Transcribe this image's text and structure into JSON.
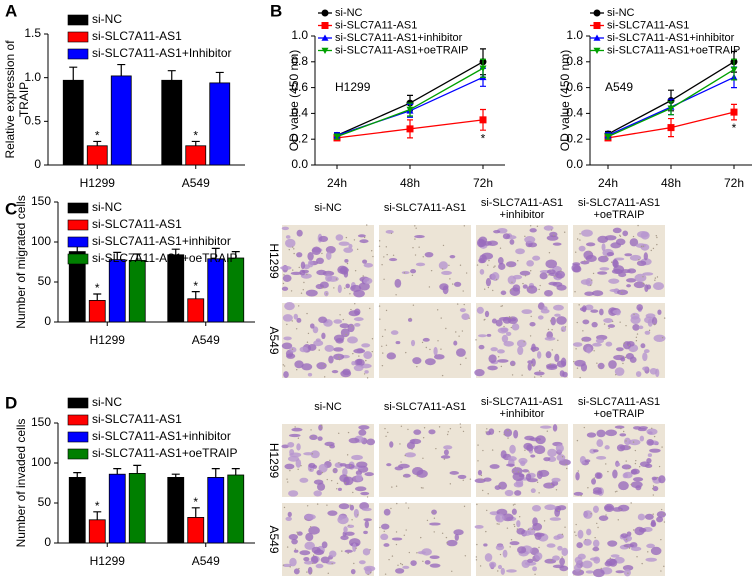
{
  "panel_labels": [
    "A",
    "B",
    "C",
    "D"
  ],
  "chart_data": [
    {
      "type": "bar",
      "ylabel": [
        "Relative expression of",
        "TRAIP"
      ],
      "categories": [
        "H1299",
        "A549"
      ],
      "ylim": [
        0,
        1.5
      ],
      "yticks": [
        0,
        0.5,
        {
          "value": 1,
          "label": "1.0"
        },
        1.5
      ],
      "legend": "top-left",
      "series": [
        {
          "name": "si-NC",
          "color": "#000000",
          "values": [
            0.97,
            0.97
          ],
          "errors": [
            0.15,
            0.11
          ]
        },
        {
          "name": "si-SLC7A11-AS1",
          "color": "#ff0000",
          "values": [
            0.22,
            0.22
          ],
          "errors": [
            0.05,
            0.05
          ],
          "significance_mark": "*"
        },
        {
          "name": "si-SLC7A11-AS1+Inhibitor",
          "color": "#0000ff",
          "values": [
            1.02,
            0.94
          ],
          "errors": [
            0.13,
            0.12
          ]
        }
      ]
    },
    {
      "type": "line",
      "ylabel": [
        "OD value (450 nm)"
      ],
      "annotation": "H1299",
      "categories": [
        "24h",
        "48h",
        "72h"
      ],
      "ylim": [
        0,
        1
      ],
      "yticks": [
        {
          "value": 0,
          "label": "0.0"
        },
        0.2,
        0.4,
        0.6,
        0.8,
        {
          "value": 1,
          "label": "1.0"
        }
      ],
      "legend": "top-left",
      "series": [
        {
          "name": "si-NC",
          "color": "#000000",
          "marker": "circle",
          "values": [
            0.23,
            0.48,
            0.8
          ],
          "errors": [
            0.02,
            0.06,
            0.1
          ]
        },
        {
          "name": "si-SLC7A11-AS1",
          "color": "#ff0000",
          "marker": "square",
          "values": [
            0.21,
            0.28,
            0.35
          ],
          "errors": [
            0.02,
            0.07,
            0.08
          ],
          "significance_mark": "*"
        },
        {
          "name": "si-SLC7A11-AS1+inhibitor",
          "color": "#0000ff",
          "marker": "triangle",
          "values": [
            0.23,
            0.42,
            0.68
          ],
          "errors": [
            0.02,
            0.05,
            0.07
          ]
        },
        {
          "name": "si-SLC7A11-AS1+oeTRAIP",
          "color": "#00a000",
          "marker": "triangle-down",
          "values": [
            0.22,
            0.43,
            0.75
          ],
          "errors": [
            0.02,
            0.05,
            0.07
          ]
        }
      ]
    },
    {
      "type": "line",
      "ylabel": [
        "OD value (450 nm)"
      ],
      "annotation": "A549",
      "categories": [
        "24h",
        "48h",
        "72h"
      ],
      "ylim": [
        0,
        1
      ],
      "yticks": [
        {
          "value": 0,
          "label": "0.0"
        },
        0.2,
        0.4,
        0.6,
        0.8,
        {
          "value": 1,
          "label": "1.0"
        }
      ],
      "legend": "top-left",
      "series": [
        {
          "name": "si-NC",
          "color": "#000000",
          "marker": "circle",
          "values": [
            0.24,
            0.5,
            0.8
          ],
          "errors": [
            0.02,
            0.08,
            0.08
          ]
        },
        {
          "name": "si-SLC7A11-AS1",
          "color": "#ff0000",
          "marker": "square",
          "values": [
            0.21,
            0.29,
            0.41
          ],
          "errors": [
            0.02,
            0.07,
            0.06
          ],
          "significance_mark": "*"
        },
        {
          "name": "si-SLC7A11-AS1+inhibitor",
          "color": "#0000ff",
          "marker": "triangle",
          "values": [
            0.23,
            0.45,
            0.68
          ],
          "errors": [
            0.02,
            0.06,
            0.08
          ]
        },
        {
          "name": "si-SLC7A11-AS1+oeTRAIP",
          "color": "#00a000",
          "marker": "triangle-down",
          "values": [
            0.22,
            0.44,
            0.74
          ],
          "errors": [
            0.02,
            0.05,
            0.08
          ]
        }
      ]
    },
    {
      "type": "bar",
      "ylabel": [
        "Number of migrated cells"
      ],
      "categories": [
        "H1299",
        "A549"
      ],
      "ylim": [
        0,
        150
      ],
      "yticks": [
        0,
        50,
        100,
        150
      ],
      "legend": "top-left",
      "series": [
        {
          "name": "si-NC",
          "color": "#000000",
          "values": [
            88,
            84
          ],
          "errors": [
            17,
            7
          ]
        },
        {
          "name": "si-SLC7A11-AS1",
          "color": "#ff0000",
          "values": [
            27,
            29
          ],
          "errors": [
            8,
            9
          ],
          "significance_mark": "*"
        },
        {
          "name": "si-SLC7A11-AS1+inhibitor",
          "color": "#0000ff",
          "values": [
            78,
            79
          ],
          "errors": [
            9,
            13
          ]
        },
        {
          "name": "si-SLC7A11-AS1+oeTRAIP",
          "color": "#007f00",
          "values": [
            77,
            80
          ],
          "errors": [
            8,
            8
          ]
        }
      ]
    },
    {
      "type": "bar",
      "ylabel": [
        "Number of invaded cells"
      ],
      "categories": [
        "H1299",
        "A549"
      ],
      "ylim": [
        0,
        150
      ],
      "yticks": [
        0,
        50,
        100,
        150
      ],
      "legend": "top-left",
      "series": [
        {
          "name": "si-NC",
          "color": "#000000",
          "values": [
            82,
            82
          ],
          "errors": [
            6,
            4
          ]
        },
        {
          "name": "si-SLC7A11-AS1",
          "color": "#ff0000",
          "values": [
            29,
            32
          ],
          "errors": [
            10,
            12
          ],
          "significance_mark": "*"
        },
        {
          "name": "si-SLC7A11-AS1+inhibitor",
          "color": "#0000ff",
          "values": [
            86,
            82
          ],
          "errors": [
            7,
            11
          ]
        },
        {
          "name": "si-SLC7A11-AS1+oeTRAIP",
          "color": "#007f00",
          "values": [
            87,
            85
          ],
          "errors": [
            10,
            8
          ]
        }
      ]
    }
  ],
  "micrographs": [
    {
      "columns": [
        [
          "si-NC"
        ],
        [
          "si-SLC7A11-AS1"
        ],
        [
          "si-SLC7A11-AS1",
          "+inhibitor"
        ],
        [
          "si-SLC7A11-AS1",
          "+oeTRAIP"
        ]
      ],
      "rows": [
        "H1299",
        "A549"
      ]
    },
    {
      "columns": [
        [
          "si-NC"
        ],
        [
          "si-SLC7A11-AS1"
        ],
        [
          "si-SLC7A11-AS1",
          "+inhibitor"
        ],
        [
          "si-SLC7A11-AS1",
          "+oeTRAIP"
        ]
      ],
      "rows": [
        "H1299",
        "A549"
      ]
    }
  ]
}
